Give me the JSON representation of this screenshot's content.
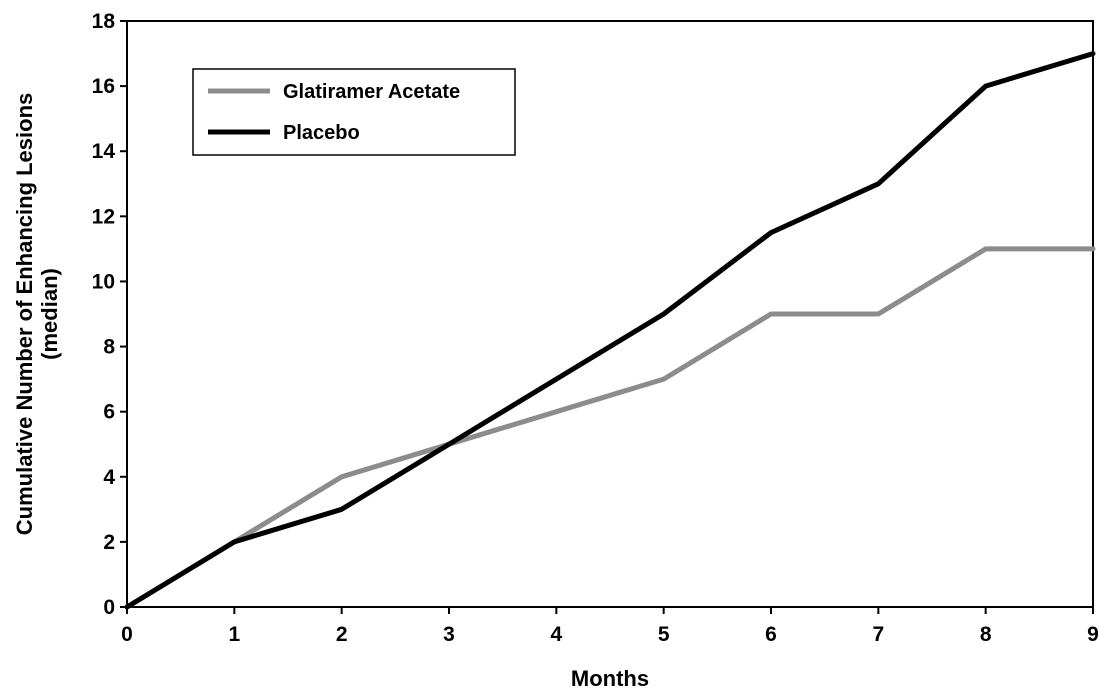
{
  "chart_data": {
    "type": "line",
    "title": "",
    "xlabel": "Months",
    "ylabel_lines": [
      "Cumulative Number of Enhancing Lesions",
      "(median)"
    ],
    "x": [
      0,
      1,
      2,
      3,
      4,
      5,
      6,
      7,
      8,
      9
    ],
    "xlim": [
      0,
      9
    ],
    "ylim": [
      0,
      18
    ],
    "x_ticks": [
      0,
      1,
      2,
      3,
      4,
      5,
      6,
      7,
      8,
      9
    ],
    "y_ticks": [
      0,
      2,
      4,
      6,
      8,
      10,
      12,
      14,
      16,
      18
    ],
    "grid": false,
    "legend_position": "top-left",
    "series": [
      {
        "name": "Glatiramer Acetate",
        "color": "#8c8c8c",
        "values": [
          0,
          2,
          4,
          5,
          6,
          7,
          9,
          9,
          11,
          11
        ]
      },
      {
        "name": "Placebo",
        "color": "#000000",
        "values": [
          0,
          2,
          3,
          5,
          7,
          9,
          11.5,
          13,
          16,
          17
        ]
      }
    ]
  }
}
